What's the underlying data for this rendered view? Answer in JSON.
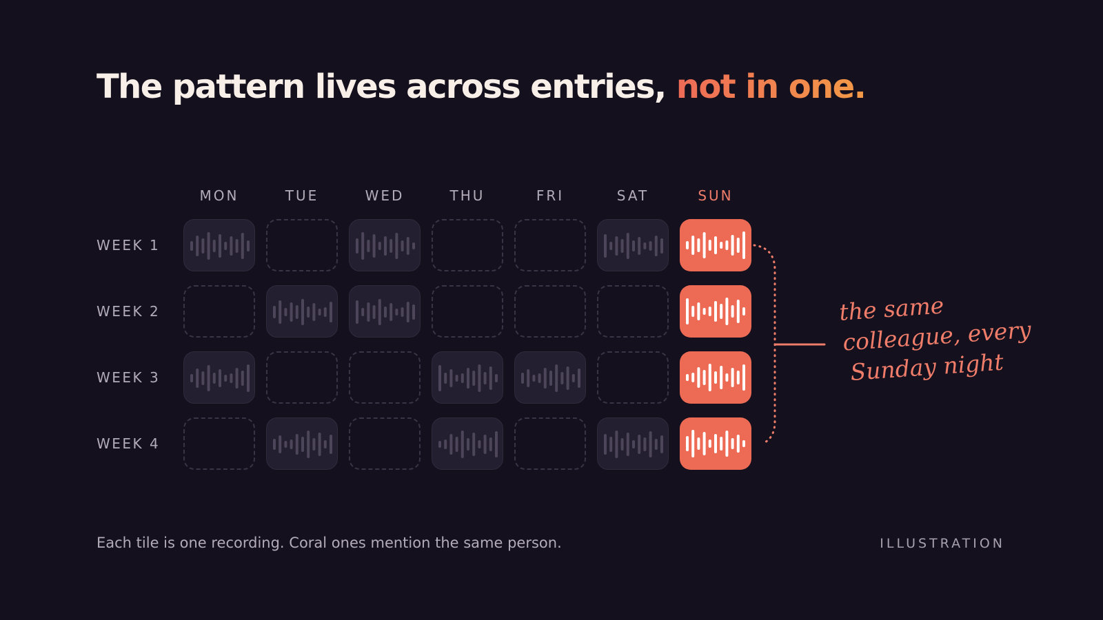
{
  "title": {
    "main": "The pattern lives across entries, ",
    "highlight": "not in one."
  },
  "days": [
    "MON",
    "TUE",
    "WED",
    "THU",
    "FRI",
    "SAT",
    "SUN"
  ],
  "highlight_day_index": 6,
  "weeks": [
    {
      "label": "WEEK 1",
      "tiles": [
        "rec",
        "empty",
        "rec",
        "empty",
        "empty",
        "rec",
        "coral"
      ]
    },
    {
      "label": "WEEK 2",
      "tiles": [
        "empty",
        "rec",
        "rec",
        "empty",
        "empty",
        "empty",
        "coral"
      ]
    },
    {
      "label": "WEEK 3",
      "tiles": [
        "rec",
        "empty",
        "empty",
        "rec",
        "rec",
        "empty",
        "coral"
      ]
    },
    {
      "label": "WEEK 4",
      "tiles": [
        "empty",
        "rec",
        "empty",
        "rec",
        "empty",
        "rec",
        "coral"
      ]
    }
  ],
  "annotation": {
    "line1": "the same",
    "line2": "colleague, every",
    "line3": "Sunday night"
  },
  "caption": "Each tile is one recording. Coral ones mention the same person.",
  "tag": "ILLUSTRATION",
  "colors": {
    "background": "#14101e",
    "coral": "#ed6b55",
    "accent_gradient_end": "#f39a47",
    "recording_tile": "#241f30",
    "waveform_dim": "#4d4559",
    "waveform_bright": "#ffffff"
  },
  "icons": {
    "recording": "audio-waveform-icon"
  }
}
